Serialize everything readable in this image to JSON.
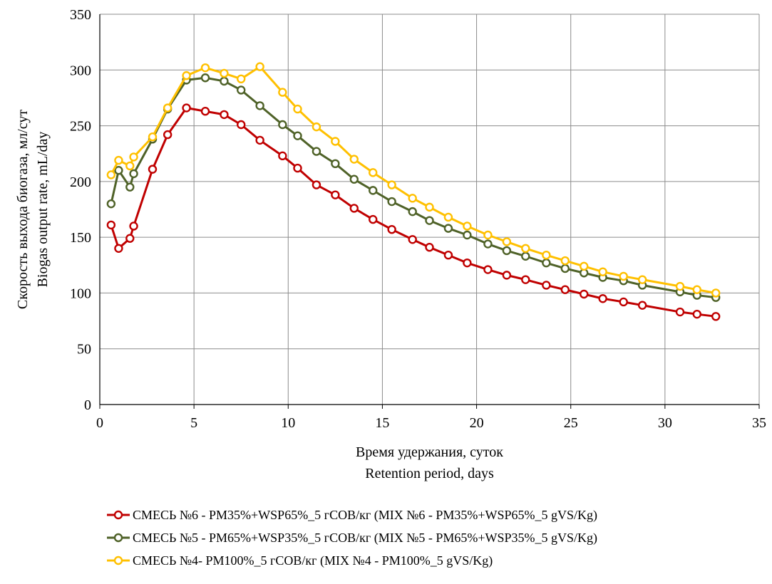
{
  "chart_data": {
    "type": "line",
    "title": "",
    "xlabel_lines": [
      "Время удержания, суток",
      "Retention period, days"
    ],
    "ylabel_lines": [
      "Скорость выхода биогаза, мл/сут",
      "Biogas output rate, mL/day"
    ],
    "xlim": [
      0,
      35
    ],
    "ylim": [
      0,
      350
    ],
    "x_ticks": [
      0,
      5,
      10,
      15,
      20,
      25,
      30,
      35
    ],
    "y_ticks": [
      0,
      50,
      100,
      150,
      200,
      250,
      300,
      350
    ],
    "grid": true,
    "legend_position": "bottom",
    "series": [
      {
        "name": "СМЕСЬ №6 - PM35%+WSP65%_5 гСОВ/кг (MIX №6 - PM35%+WSP65%_5 gVS/Kg)",
        "color": "#c00000",
        "x": [
          0.6,
          1.0,
          1.6,
          1.8,
          2.8,
          3.6,
          4.6,
          5.6,
          6.6,
          7.5,
          8.5,
          9.7,
          10.5,
          11.5,
          12.5,
          13.5,
          14.5,
          15.5,
          16.6,
          17.5,
          18.5,
          19.5,
          20.6,
          21.6,
          22.6,
          23.7,
          24.7,
          25.7,
          26.7,
          27.8,
          28.8,
          30.8,
          31.7,
          32.7
        ],
        "y": [
          161,
          140,
          149,
          160,
          211,
          242,
          266,
          263,
          260,
          251,
          237,
          223,
          212,
          197,
          188,
          176,
          166,
          157,
          148,
          141,
          134,
          127,
          121,
          116,
          112,
          107,
          103,
          99,
          95,
          92,
          89,
          83,
          81,
          79
        ]
      },
      {
        "name": "СМЕСЬ №5 - PM65%+WSP35%_5 гСОВ/кг (MIX №5 - PM65%+WSP35%_5 gVS/Kg)",
        "color": "#4f6228",
        "x": [
          0.6,
          1.0,
          1.6,
          1.8,
          2.8,
          3.6,
          4.6,
          5.6,
          6.6,
          7.5,
          8.5,
          9.7,
          10.5,
          11.5,
          12.5,
          13.5,
          14.5,
          15.5,
          16.6,
          17.5,
          18.5,
          19.5,
          20.6,
          21.6,
          22.6,
          23.7,
          24.7,
          25.7,
          26.7,
          27.8,
          28.8,
          30.8,
          31.7,
          32.7
        ],
        "y": [
          180,
          210,
          195,
          207,
          238,
          265,
          291,
          293,
          290,
          282,
          268,
          251,
          241,
          227,
          216,
          202,
          192,
          182,
          173,
          165,
          158,
          152,
          144,
          138,
          133,
          127,
          122,
          118,
          114,
          111,
          107,
          101,
          98,
          96
        ]
      },
      {
        "name": "СМЕСЬ №4- PM100%_5 гСОВ/кг (MIX №4 - PM100%_5 gVS/Kg)",
        "color": "#ffc000",
        "x": [
          0.6,
          1.0,
          1.6,
          1.8,
          2.8,
          3.6,
          4.6,
          5.6,
          6.6,
          7.5,
          8.5,
          9.7,
          10.5,
          11.5,
          12.5,
          13.5,
          14.5,
          15.5,
          16.6,
          17.5,
          18.5,
          19.5,
          20.6,
          21.6,
          22.6,
          23.7,
          24.7,
          25.7,
          26.7,
          27.8,
          28.8,
          30.8,
          31.7,
          32.7
        ],
        "y": [
          206,
          219,
          214,
          222,
          240,
          266,
          295,
          302,
          297,
          292,
          303,
          280,
          265,
          249,
          236,
          220,
          208,
          197,
          185,
          177,
          168,
          160,
          152,
          146,
          140,
          134,
          129,
          124,
          119,
          115,
          112,
          106,
          103,
          100
        ]
      }
    ]
  }
}
